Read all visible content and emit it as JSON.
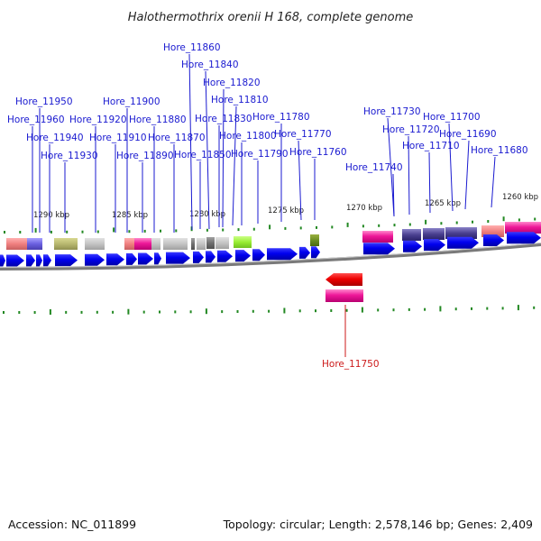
{
  "title": "Halothermothrix orenii H 168, complete genome",
  "footer": {
    "accession": "Accession: NC_011899",
    "summary": "Topology: circular; Length: 2,578,146 bp; Genes: 2,409"
  },
  "kbp_marks": [
    "1290 kbp",
    "1285 kbp",
    "1280 kbp",
    "1275 kbp",
    "1270 kbp",
    "1265 kbp",
    "1260 kbp"
  ],
  "gene_labels_above": [
    "Hore_11950",
    "Hore_11960",
    "Hore_11940",
    "Hore_11930",
    "Hore_11920",
    "Hore_11910",
    "Hore_11900",
    "Hore_11890",
    "Hore_11880",
    "Hore_11870",
    "Hore_11860",
    "Hore_11850",
    "Hore_11840",
    "Hore_11830",
    "Hore_11820",
    "Hore_11810",
    "Hore_11800",
    "Hore_11790",
    "Hore_11780",
    "Hore_11770",
    "Hore_11760",
    "Hore_11740",
    "Hore_11730",
    "Hore_11720",
    "Hore_11710",
    "Hore_11700",
    "Hore_11690",
    "Hore_11680"
  ],
  "gene_labels_below": [
    "Hore_11750"
  ],
  "colors": {
    "cds_forward": "#0000ee",
    "cds_reverse": "#ee0000",
    "gene_label": "#1a1ad0",
    "gene_label_reverse": "#cc1a1a",
    "backbone": "#888888",
    "tick": "#228822"
  }
}
